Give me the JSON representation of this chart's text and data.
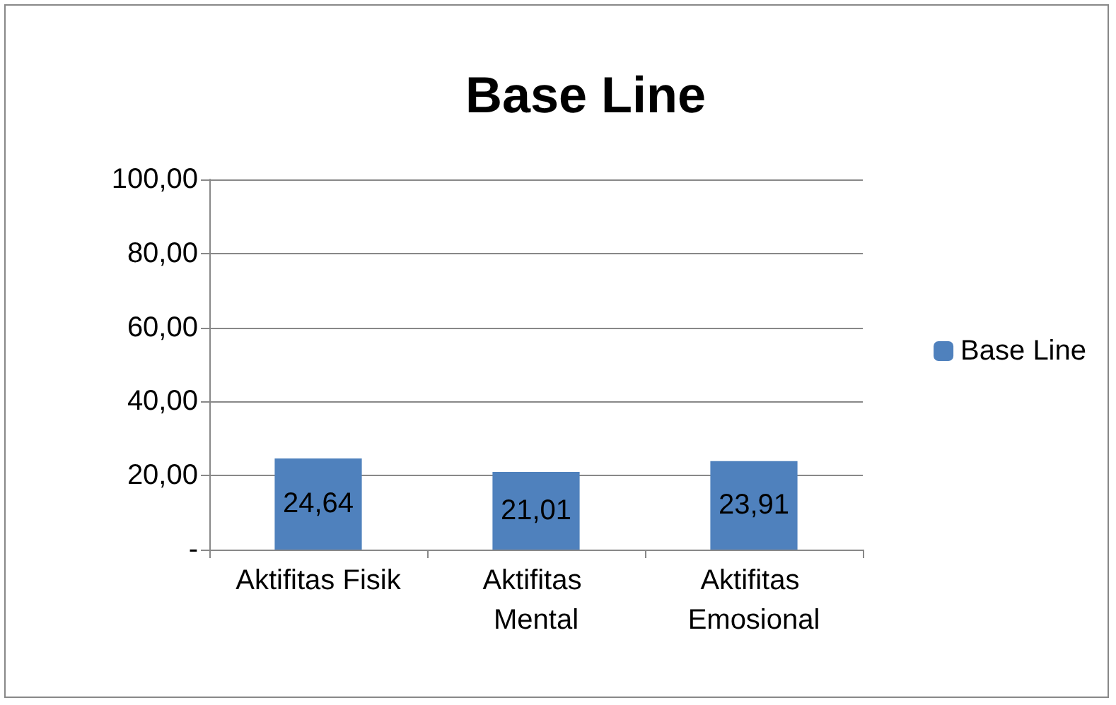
{
  "chart_data": {
    "type": "bar",
    "title": "Base Line",
    "categories": [
      "Aktifitas Fisik",
      "Aktifitas Mental",
      "Aktifitas Emosional"
    ],
    "series": [
      {
        "name": "Base Line",
        "color": "#4f81bd",
        "values": [
          24.64,
          21.01,
          23.91
        ],
        "value_labels": [
          "24,64",
          "21,01",
          "23,91"
        ]
      }
    ],
    "ylim": [
      0,
      100
    ],
    "yticks": [
      {
        "value": 0,
        "label": "-"
      },
      {
        "value": 20,
        "label": "20,00"
      },
      {
        "value": 40,
        "label": "40,00"
      },
      {
        "value": 60,
        "label": "60,00"
      },
      {
        "value": 80,
        "label": "80,00"
      },
      {
        "value": 100,
        "label": "100,00"
      }
    ],
    "grid": "y",
    "legend": "right"
  }
}
